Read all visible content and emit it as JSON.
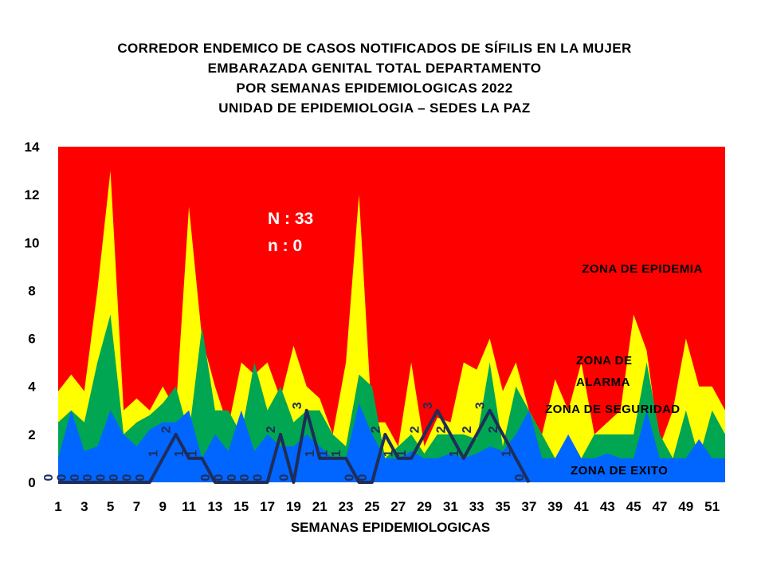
{
  "title_lines": [
    "CORREDOR  ENDEMICO  DE CASOS NOTIFICADOS  DE SÍFILIS  EN LA MUJER",
    "EMBARAZADA  GENITAL  TOTAL DEPARTAMENTO",
    "POR SEMANAS  EPIDEMIOLOGICAS  2022",
    "UNIDAD  DE EPIDEMIOLOGIA  – SEDES LA PAZ"
  ],
  "colors": {
    "epidemia": "#ff0000",
    "alarma": "#ffff00",
    "seguridad": "#00a651",
    "exito": "#0066ff",
    "line": "#1f2d5a"
  },
  "chart_data": {
    "type": "area",
    "xlabel": "SEMANAS EPIDEMIOLOGICAS",
    "ylabel": "",
    "ylim": [
      0,
      14
    ],
    "xlim": [
      1,
      52
    ],
    "y_ticks": [
      0,
      2,
      4,
      6,
      8,
      10,
      12,
      14
    ],
    "x_tick_labels": [
      1,
      3,
      5,
      7,
      9,
      11,
      13,
      15,
      17,
      19,
      21,
      23,
      25,
      27,
      29,
      31,
      33,
      35,
      37,
      39,
      41,
      43,
      45,
      47,
      49,
      51
    ],
    "annotations": [
      "N : 33",
      "n : 0"
    ],
    "zones": [
      {
        "name": "ZONA DE EPIDEMIA",
        "color": "#ff0000",
        "upper": 14
      },
      {
        "name": "ZONA DE ALARMA",
        "color": "#ffff00",
        "upper": [
          3.8,
          4.5,
          3.8,
          8,
          13,
          3,
          3.5,
          3,
          4,
          3,
          11.5,
          6,
          4,
          2.3,
          5,
          4.5,
          5,
          3.5,
          5.7,
          4,
          3.5,
          2,
          5,
          12,
          2.5,
          2.5,
          1.5,
          5,
          1.5,
          2.7,
          2.5,
          5,
          4.7,
          6,
          3.8,
          5,
          3,
          2,
          4.3,
          3,
          5,
          2,
          2.5,
          3,
          7,
          5.5,
          1.5,
          3,
          6,
          4,
          4,
          3
        ]
      },
      {
        "name": "ZONA DE  SEGURIDAD",
        "color": "#00a651",
        "upper": [
          2.5,
          3,
          2.5,
          5,
          7,
          2,
          2.5,
          2.8,
          3.3,
          4,
          2,
          6.5,
          3,
          3,
          2,
          5,
          3,
          4,
          2.5,
          3,
          3,
          2,
          1.5,
          4.5,
          4,
          1,
          1.5,
          2,
          1.2,
          2,
          2,
          2,
          1.8,
          5,
          1.5,
          4,
          3,
          2,
          1,
          1,
          1,
          2,
          2,
          2,
          2,
          5,
          2,
          1,
          3,
          1,
          3,
          2
        ]
      },
      {
        "name": "ZONA DE  EXITO",
        "color": "#0066ff",
        "upper": [
          1,
          3,
          1.3,
          1.5,
          3,
          2,
          1.5,
          2.2,
          2.5,
          2.5,
          3,
          1,
          2,
          1.3,
          3,
          1.3,
          2,
          1.5,
          1.5,
          2,
          1.5,
          1,
          1,
          3.3,
          2,
          1,
          1,
          1.3,
          1,
          1,
          1.2,
          1,
          1.2,
          1.5,
          1.3,
          2,
          3,
          1,
          1,
          2,
          1,
          1,
          1.2,
          1,
          1,
          3,
          1,
          1,
          1,
          1.8,
          1,
          1
        ]
      }
    ],
    "series": [
      {
        "x": [
          1,
          2,
          3,
          4,
          5,
          6,
          7,
          8,
          9,
          10,
          11,
          12,
          13,
          14,
          15,
          16,
          17,
          18,
          19,
          20,
          21,
          22,
          23,
          24,
          25,
          26,
          27,
          28,
          29,
          30,
          31,
          32,
          33,
          34,
          35,
          36,
          37
        ],
        "values": [
          0,
          0,
          0,
          0,
          0,
          0,
          0,
          0,
          1,
          2,
          1,
          1,
          0,
          0,
          0,
          0,
          0,
          2,
          0,
          3,
          1,
          1,
          1,
          0,
          0,
          2,
          1,
          1,
          2,
          3,
          2,
          1,
          2,
          3,
          2,
          1,
          0
        ]
      }
    ]
  }
}
